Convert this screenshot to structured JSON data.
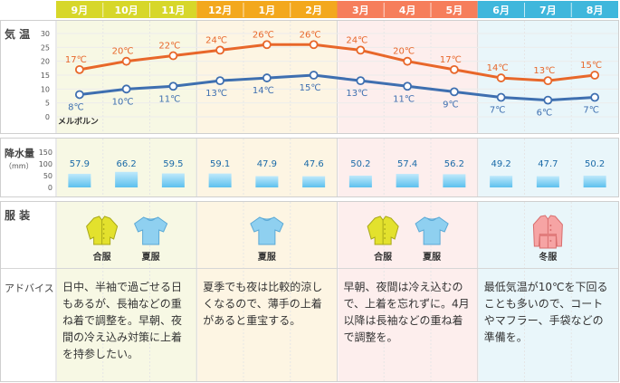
{
  "labels": {
    "temp": "気 温",
    "rain": "降水量",
    "rain_unit": "（mm）",
    "clothes": "服 装",
    "advice": "アドバイス",
    "city": "メルボルン"
  },
  "season_colors": {
    "autumn_header": "#d7d72a",
    "summer_header": "#f3a81d",
    "spring_header": "#f67e5b",
    "winter_header": "#3fb7dc",
    "autumn_bg": "#f7f8e4",
    "summer_bg": "#fdf5e3",
    "spring_bg": "#fdeeed",
    "winter_bg": "#e9f6fa"
  },
  "clothes": [
    {
      "group": "autumn",
      "items": [
        {
          "icon": "yellow-shirt-icon",
          "label": "合服"
        },
        {
          "icon": "blue-tshirt-icon",
          "label": "夏服"
        }
      ]
    },
    {
      "group": "summer",
      "items": [
        {
          "icon": "blue-tshirt-icon",
          "label": "夏服"
        }
      ]
    },
    {
      "group": "spring",
      "items": [
        {
          "icon": "yellow-shirt-icon",
          "label": "合服"
        },
        {
          "icon": "blue-tshirt-icon",
          "label": "夏服"
        }
      ]
    },
    {
      "group": "winter",
      "items": [
        {
          "icon": "pink-coat-icon",
          "label": "冬服"
        }
      ]
    }
  ],
  "advice": [
    "日中、半袖で過ごせる日もあるが、長袖などの重ね着で調整を。早朝、夜間の冷え込み対策に上着を持参したい。",
    "夏季でも夜は比較的涼しくなるので、薄手の上着があると重宝する。",
    "早朝、夜間は冷え込むので、上着を忘れずに。4月以降は長袖などの重ね着で調整を。",
    "最低気温が10℃を下回ることも多いので、コートやマフラー、手袋などの準備を。"
  ],
  "chart_data": [
    {
      "type": "line",
      "categories": [
        "9月",
        "10月",
        "11月",
        "12月",
        "1月",
        "2月",
        "3月",
        "4月",
        "5月",
        "6月",
        "7月",
        "8月"
      ],
      "series": [
        {
          "values": [
            17,
            20,
            22,
            24,
            26,
            26,
            24,
            20,
            17,
            14,
            13,
            15
          ],
          "color": "#e8672a"
        },
        {
          "values": [
            8,
            10,
            11,
            13,
            14,
            15,
            13,
            11,
            9,
            7,
            6,
            7
          ],
          "color": "#3e6fb0"
        }
      ],
      "value_labels": {
        "high": [
          "17℃",
          "20℃",
          "22℃",
          "24℃",
          "26℃",
          "26℃",
          "24℃",
          "20℃",
          "17℃",
          "14℃",
          "13℃",
          "15℃"
        ],
        "low": [
          "8℃",
          "10℃",
          "11℃",
          "13℃",
          "14℃",
          "15℃",
          "13℃",
          "11℃",
          "9℃",
          "7℃",
          "6℃",
          "7℃"
        ]
      },
      "yticks": [
        "30",
        "25",
        "20",
        "15",
        "10",
        "5",
        "0"
      ],
      "ylim": [
        0,
        30
      ]
    },
    {
      "type": "bar",
      "categories": [
        "9月",
        "10月",
        "11月",
        "12月",
        "1月",
        "2月",
        "3月",
        "4月",
        "5月",
        "6月",
        "7月",
        "8月"
      ],
      "values": [
        57.9,
        66.2,
        59.5,
        59.1,
        47.9,
        47.6,
        50.2,
        57.4,
        56.2,
        49.2,
        47.7,
        50.2
      ],
      "value_labels": [
        "57.9",
        "66.2",
        "59.5",
        "59.1",
        "47.9",
        "47.6",
        "50.2",
        "57.4",
        "56.2",
        "49.2",
        "47.7",
        "50.2"
      ],
      "yticks": [
        "150",
        "100",
        "50",
        "0"
      ],
      "ylim": [
        0,
        150
      ]
    }
  ]
}
